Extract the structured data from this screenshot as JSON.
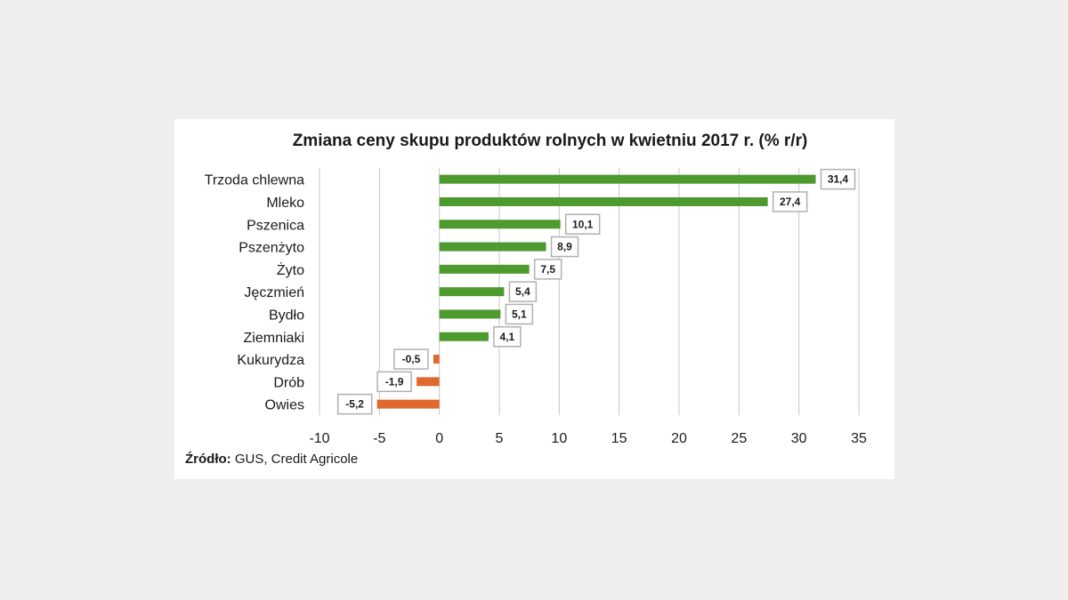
{
  "chart_data": {
    "type": "bar",
    "orientation": "horizontal",
    "title": "Zmiana ceny skupu produktów rolnych w kwietniu 2017 r. (% r/r)",
    "categories": [
      "Trzoda chlewna",
      "Mleko",
      "Pszenica",
      "Pszenżyto",
      "Żyto",
      "Jęczmień",
      "Bydło",
      "Ziemniaki",
      "Kukurydza",
      "Drób",
      "Owies"
    ],
    "values": [
      31.4,
      27.4,
      10.1,
      8.9,
      7.5,
      5.4,
      5.1,
      4.1,
      -0.5,
      -1.9,
      -5.2
    ],
    "value_labels": [
      "31,4",
      "27,4",
      "10,1",
      "8,9",
      "7,5",
      "5,4",
      "5,1",
      "4,1",
      "-0,5",
      "-1,9",
      "-5,2"
    ],
    "xlim": [
      -10,
      35
    ],
    "x_ticks": [
      -10,
      -5,
      0,
      5,
      10,
      15,
      20,
      25,
      30,
      35
    ],
    "xlabel": "",
    "ylabel": "",
    "grid": true,
    "colors": {
      "positive": "#4e9a2f",
      "negative": "#e0692e",
      "grid": "#c8c8c8",
      "label_border": "#b0b0b0"
    }
  },
  "source": {
    "label": "Źródło:",
    "text": " GUS, Credit Agricole"
  }
}
